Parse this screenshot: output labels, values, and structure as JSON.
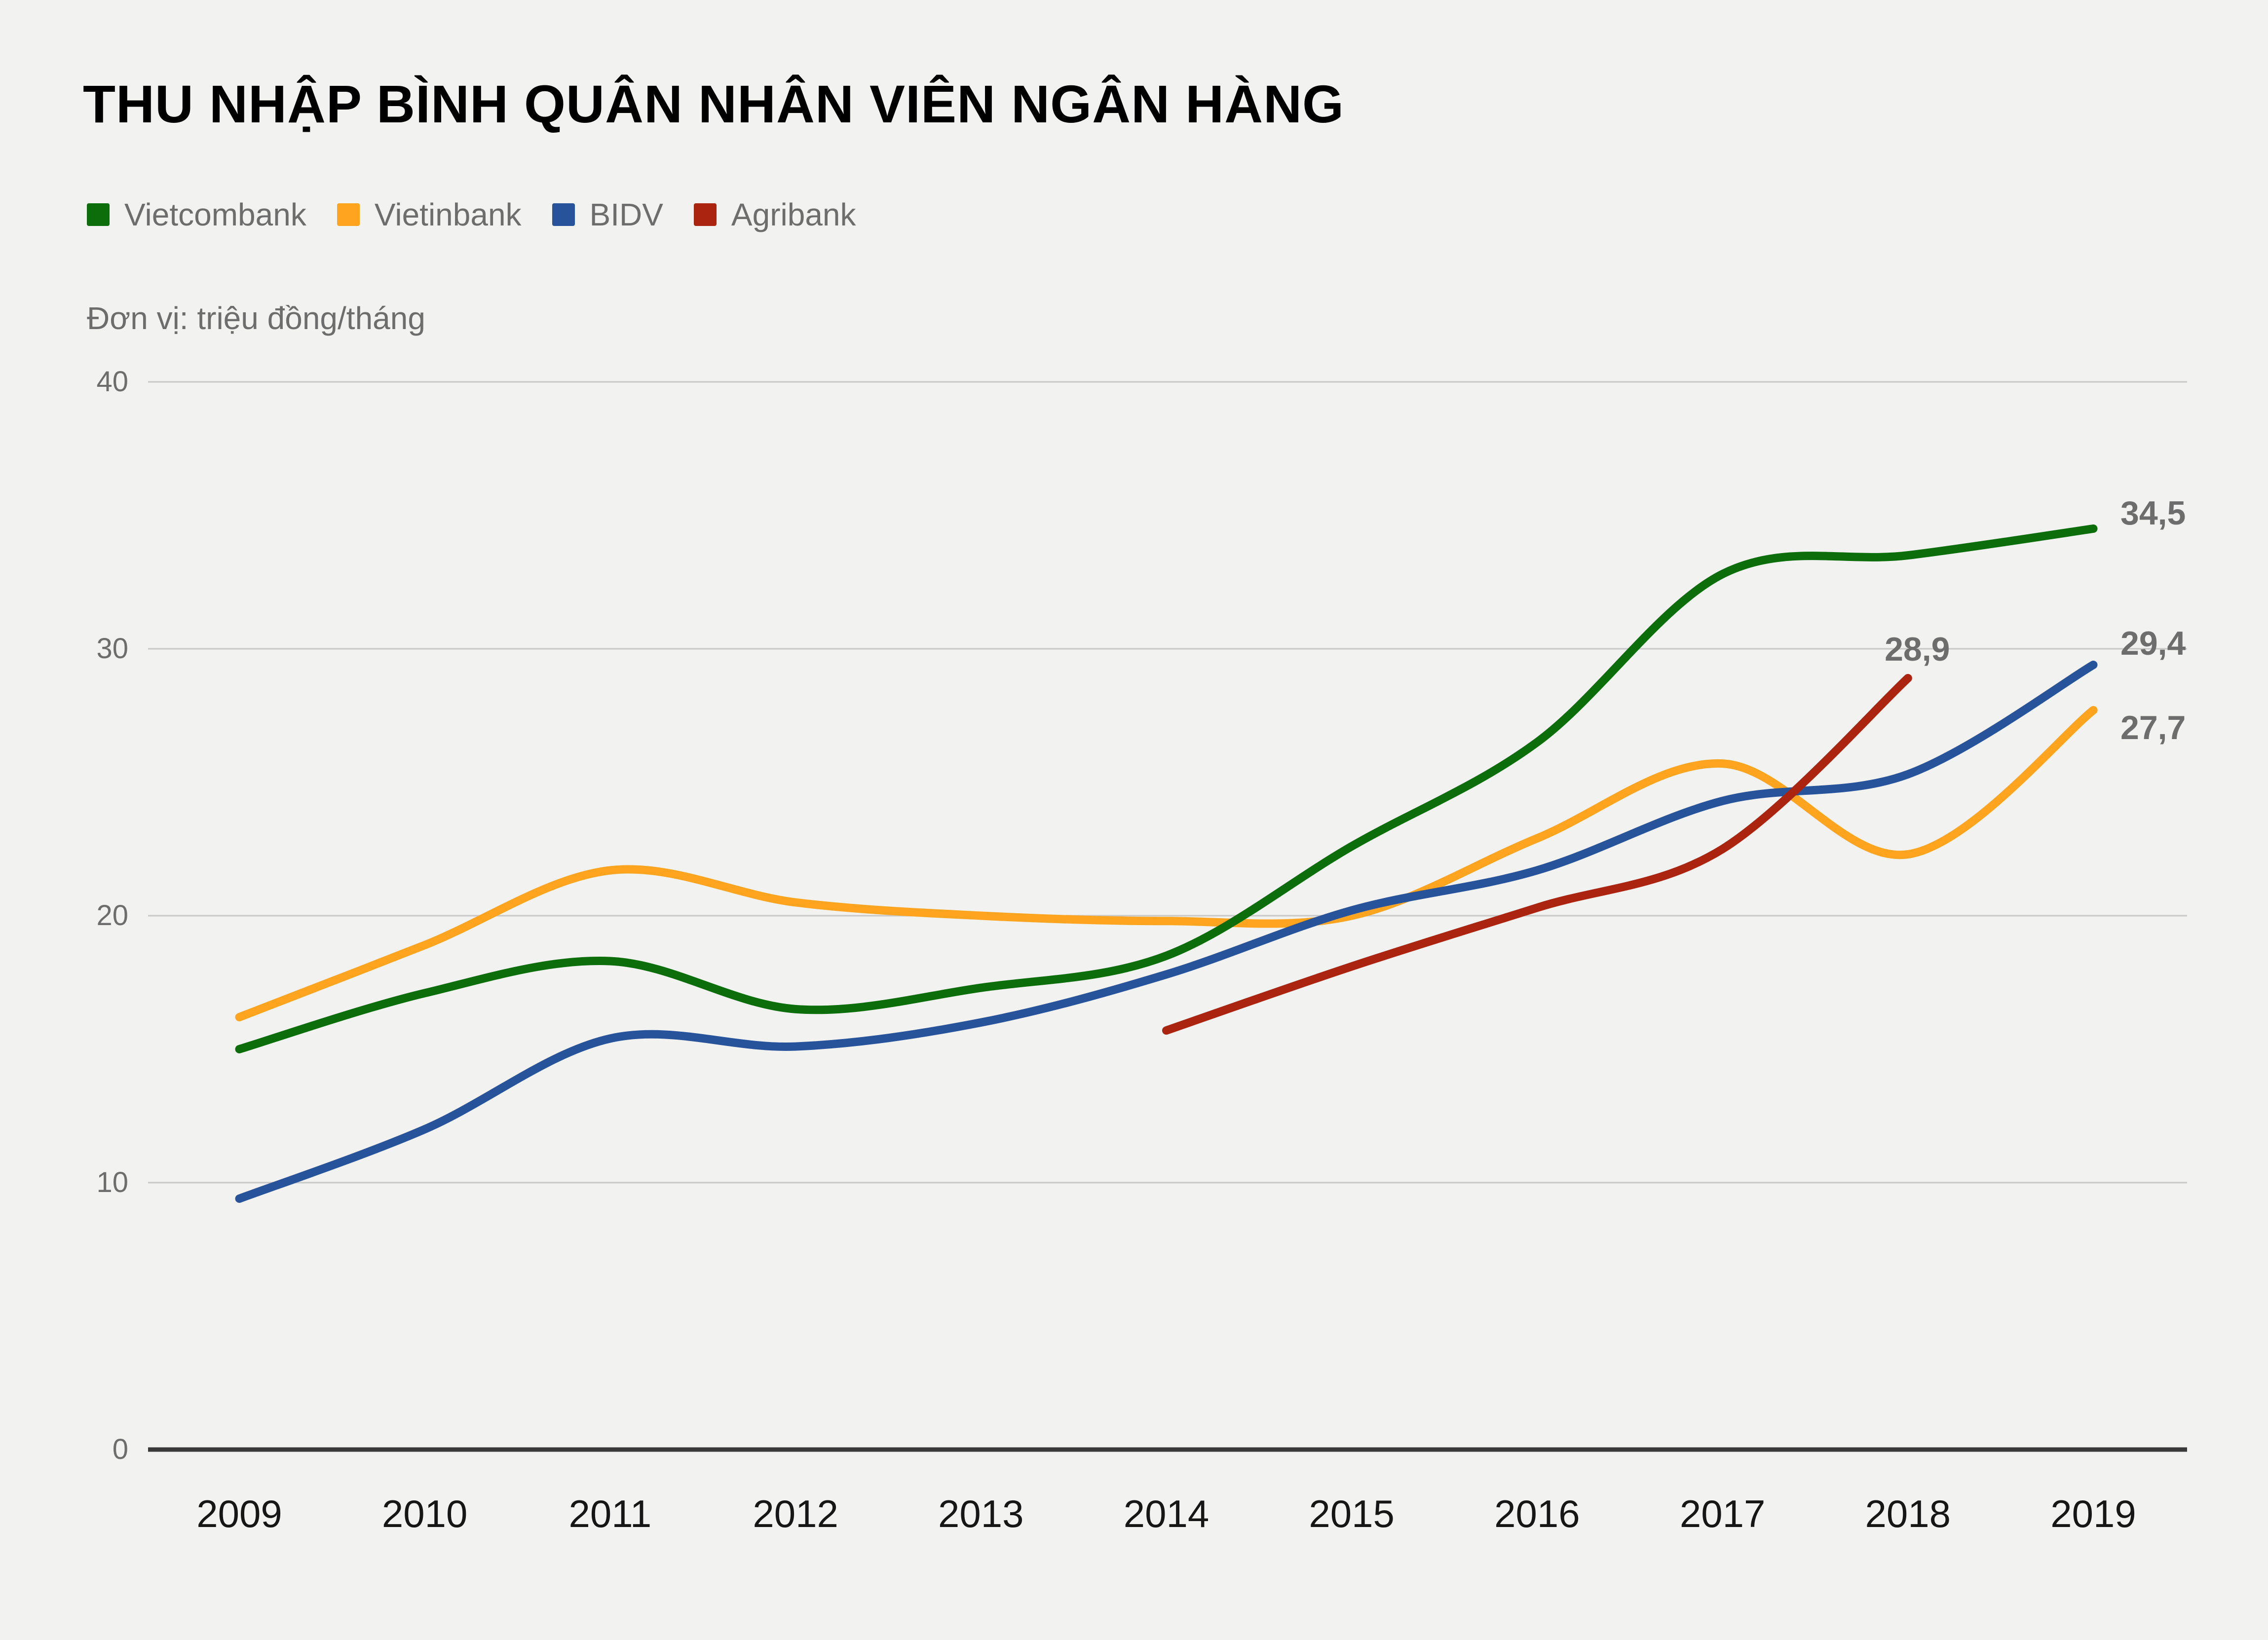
{
  "title": "THU NHẬP BÌNH QUÂN NHÂN VIÊN NGÂN HÀNG",
  "unit_note": "Đơn vị: triệu đồng/tháng",
  "colors": {
    "background": "#f2f2f1",
    "gridline": "#c8c8c8",
    "axis_line": "#3a3a3a",
    "muted_text": "#6d6d6d",
    "axis_label_text": "#161616",
    "title_text": "#000000"
  },
  "chart_data": {
    "type": "line",
    "title": "THU NHẬP BÌNH QUÂN NHÂN VIÊN NGÂN HÀNG",
    "subtitle": "Đơn vị: triệu đồng/tháng",
    "x": [
      2009,
      2010,
      2011,
      2012,
      2013,
      2014,
      2015,
      2016,
      2017,
      2018,
      2019
    ],
    "xlabel": "",
    "ylabel": "triệu đồng/tháng",
    "ylim": [
      0,
      40
    ],
    "y_ticks": [
      "40",
      "30",
      "20",
      "10",
      "0"
    ],
    "grid": "horizontal",
    "legend_position": "top",
    "series": [
      {
        "name": "Vietcombank",
        "color": "#0b6e0b",
        "values": [
          15.0,
          17.1,
          18.3,
          16.5,
          17.3,
          18.5,
          22.6,
          26.5,
          32.8,
          33.5,
          34.5
        ],
        "end_label": "34,5"
      },
      {
        "name": "Vietinbank",
        "color": "#ffa41f",
        "values": [
          16.2,
          18.9,
          21.7,
          20.5,
          20.0,
          19.8,
          20.0,
          22.9,
          25.7,
          22.3,
          27.7
        ],
        "end_label": "27,7"
      },
      {
        "name": "BIDV",
        "color": "#27539b",
        "values": [
          9.4,
          12.0,
          15.4,
          15.1,
          16.0,
          17.8,
          20.2,
          21.7,
          24.3,
          25.3,
          29.4
        ],
        "end_label": "29,4"
      },
      {
        "name": "Agribank",
        "color": "#ab2410",
        "values": [
          null,
          null,
          null,
          null,
          null,
          15.7,
          18.1,
          20.3,
          22.5,
          28.9,
          null
        ],
        "end_label": "28,9"
      }
    ]
  }
}
